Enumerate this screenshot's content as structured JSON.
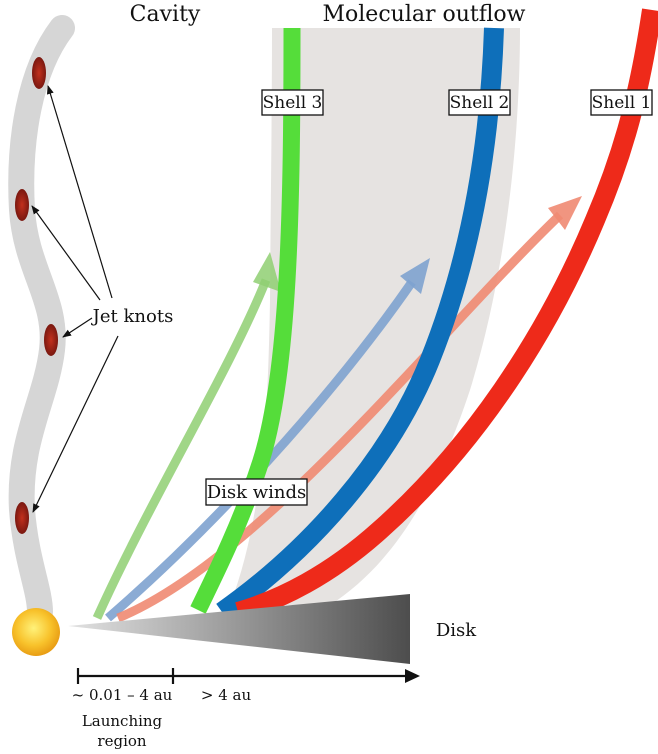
{
  "labels": {
    "cavity": "Cavity",
    "outflow": "Molecular outflow",
    "shell3": "Shell 3",
    "shell2": "Shell 2",
    "shell1": "Shell 1",
    "jet_knots": "Jet knots",
    "disk_winds": "Disk winds",
    "disk": "Disk",
    "range_inner": "~ 0.01 – 4 au",
    "range_outer": "> 4 au",
    "launch_line1": "Launching",
    "launch_line2": "region"
  },
  "colors": {
    "shell3": "#55dd3a",
    "shell2": "#0e6fba",
    "shell1": "#ee2a1a",
    "cavity_band": "#d6d6d6",
    "outflow_region": "#e6e3e1",
    "knot": "#b52517",
    "star": "#f6b21d"
  }
}
